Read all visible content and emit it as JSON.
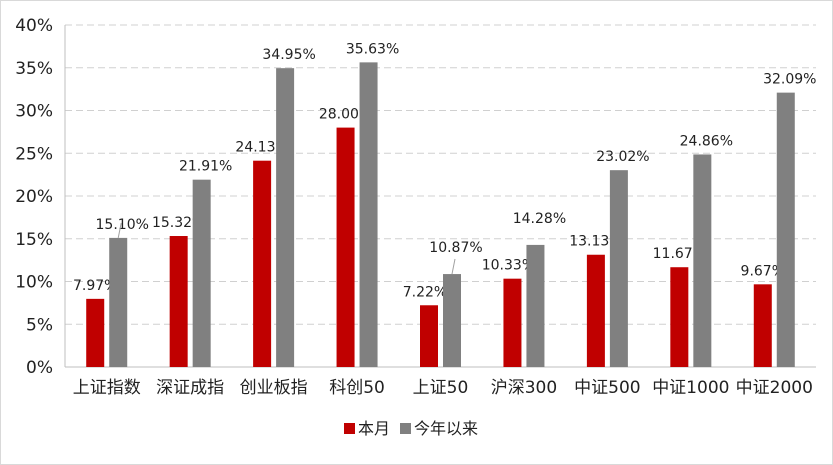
{
  "chart_data": {
    "type": "bar",
    "categories": [
      "上证指数",
      "深证成指",
      "创业板指",
      "科创50",
      "上证50",
      "沪深300",
      "中证500",
      "中证1000",
      "中证2000"
    ],
    "series": [
      {
        "name": "本月",
        "color": "#c00000",
        "values": [
          7.97,
          15.32,
          24.13,
          28.0,
          7.22,
          10.33,
          13.13,
          11.67,
          9.67
        ],
        "labels": [
          "7.97%",
          "15.32%",
          "24.13%",
          "28.00%",
          "7.22%",
          "10.33%",
          "13.13%",
          "11.67%",
          "9.67%"
        ]
      },
      {
        "name": "今年以来",
        "color": "#808080",
        "values": [
          15.1,
          21.91,
          34.95,
          35.63,
          10.87,
          14.28,
          23.02,
          24.86,
          32.09
        ],
        "labels": [
          "15.10%",
          "21.91%",
          "34.95%",
          "35.63%",
          "10.87%",
          "14.28%",
          "23.02%",
          "24.86%",
          "32.09%"
        ]
      }
    ],
    "yticks": [
      "0%",
      "5%",
      "10%",
      "15%",
      "20%",
      "25%",
      "30%",
      "35%",
      "40%"
    ],
    "ylim": [
      0,
      40
    ],
    "grid": true,
    "legend_position": "bottom"
  }
}
